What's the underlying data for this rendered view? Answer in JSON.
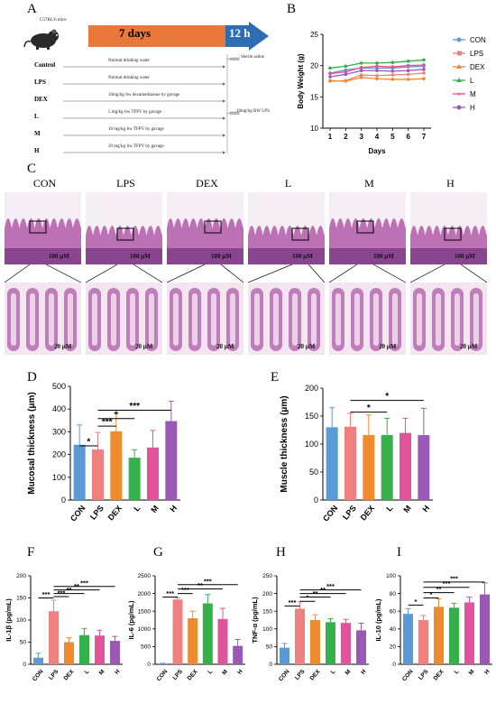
{
  "panels": {
    "A": {
      "letter": "A",
      "mouse_label": "C57BL/6 mice",
      "timeline_days": "7 days",
      "timeline_hours": "12 h",
      "saline_note": "Sterile saline",
      "lps_note": "10mg/kg BW LPS",
      "groups": [
        {
          "name": "Control",
          "treatment": "Normal drinking water"
        },
        {
          "name": "LPS",
          "treatment": "Normal drinking water"
        },
        {
          "name": "DEX",
          "treatment": "10mg/kg·bw dexamethasone by gavage"
        },
        {
          "name": "L",
          "treatment": "5 mg/kg·bw TFPV by gavage"
        },
        {
          "name": "M",
          "treatment": "10 mg/kg·bw TFPV by gavage"
        },
        {
          "name": "H",
          "treatment": "20 mg/kg·bw TFPV by gavage"
        }
      ]
    },
    "B": {
      "letter": "B"
    },
    "C": {
      "letter": "C",
      "groups": [
        "CON",
        "LPS",
        "DEX",
        "L",
        "M",
        "H"
      ],
      "scale_top": "100 μM",
      "scale_bottom": "20 μM"
    },
    "D": {
      "letter": "D"
    },
    "E": {
      "letter": "E"
    },
    "F": {
      "letter": "F"
    },
    "G": {
      "letter": "G"
    },
    "H": {
      "letter": "H"
    },
    "I": {
      "letter": "I"
    }
  },
  "colors": {
    "CON": "#5b9bd5",
    "LPS": "#f08080",
    "DEX": "#ed8b2e",
    "L": "#35b04a",
    "M": "#e0549b",
    "H": "#9b59b6",
    "timeline_orange": "#e8793a",
    "timeline_blue": "#2f6db3",
    "tissue": "#b05aa8"
  },
  "chart_data": [
    {
      "panel": "B",
      "type": "line",
      "ylabel": "Body Weight (g)",
      "xlabel": "Days",
      "x": [
        1,
        2,
        3,
        4,
        5,
        6,
        7
      ],
      "ylim": [
        10,
        25
      ],
      "yticks": [
        10,
        15,
        20,
        25
      ],
      "grid": false,
      "legend": "right",
      "series": [
        {
          "name": "CON",
          "values": [
            18.8,
            19.3,
            19.6,
            19.6,
            19.6,
            19.8,
            19.9
          ]
        },
        {
          "name": "LPS",
          "values": [
            17.5,
            17.6,
            18.5,
            18.4,
            18.5,
            18.6,
            18.8
          ]
        },
        {
          "name": "DEX",
          "values": [
            17.6,
            17.5,
            18.1,
            17.9,
            17.8,
            17.8,
            17.9
          ]
        },
        {
          "name": "L",
          "values": [
            19.6,
            19.9,
            20.4,
            20.4,
            20.5,
            20.7,
            20.9
          ]
        },
        {
          "name": "M",
          "values": [
            18.7,
            19.0,
            19.7,
            19.9,
            19.8,
            20.0,
            20.1
          ]
        },
        {
          "name": "H",
          "values": [
            18.2,
            18.6,
            19.2,
            19.2,
            19.1,
            19.2,
            19.4
          ]
        }
      ]
    },
    {
      "panel": "D",
      "type": "bar",
      "ylabel": "Mucosal thickness (μm)",
      "categories": [
        "CON",
        "LPS",
        "DEX",
        "L",
        "M",
        "H"
      ],
      "values": [
        243,
        222,
        302,
        186,
        231,
        347
      ],
      "errors": [
        87,
        75,
        80,
        35,
        75,
        87
      ],
      "ylim": [
        0,
        500
      ],
      "yticks": [
        0,
        100,
        200,
        300,
        400,
        500
      ],
      "significance": [
        {
          "from": "CON",
          "to": "LPS",
          "label": "*"
        },
        {
          "from": "LPS",
          "to": "DEX",
          "label": "***"
        },
        {
          "from": "LPS",
          "to": "L",
          "label": "*"
        },
        {
          "from": "LPS",
          "to": "H",
          "label": "***"
        }
      ]
    },
    {
      "panel": "E",
      "type": "bar",
      "ylabel": "Muscle thickness (μm)",
      "categories": [
        "CON",
        "LPS",
        "DEX",
        "L",
        "M",
        "H"
      ],
      "values": [
        130,
        131,
        116,
        116,
        120,
        116
      ],
      "errors": [
        35,
        24,
        36,
        30,
        26,
        48
      ],
      "ylim": [
        0,
        200
      ],
      "yticks": [
        0,
        50,
        100,
        150,
        200
      ],
      "significance": [
        {
          "from": "LPS",
          "to": "L",
          "label": "*"
        },
        {
          "from": "LPS",
          "to": "H",
          "label": "*"
        }
      ]
    },
    {
      "panel": "F",
      "type": "bar",
      "ylabel": "IL-1β (pg/mL)",
      "categories": [
        "CON",
        "LPS",
        "DEX",
        "L",
        "M",
        "H"
      ],
      "values": [
        15,
        120,
        50,
        66,
        65,
        53
      ],
      "errors": [
        10,
        25,
        10,
        15,
        12,
        10
      ],
      "ylim": [
        0,
        200
      ],
      "yticks": [
        0,
        50,
        100,
        150,
        200
      ],
      "significance": [
        {
          "from": "CON",
          "to": "LPS",
          "label": "***"
        },
        {
          "from": "LPS",
          "to": "DEX",
          "label": "***"
        },
        {
          "from": "LPS",
          "to": "L",
          "label": "**"
        },
        {
          "from": "LPS",
          "to": "M",
          "label": "**"
        },
        {
          "from": "LPS",
          "to": "H",
          "label": "***"
        }
      ]
    },
    {
      "panel": "G",
      "type": "bar",
      "ylabel": "IL-6 (pg/mL)",
      "categories": [
        "CON",
        "LPS",
        "DEX",
        "L",
        "M",
        "H"
      ],
      "values": [
        20,
        1830,
        1300,
        1720,
        1280,
        520
      ],
      "errors": [
        10,
        50,
        200,
        250,
        300,
        180
      ],
      "ylim": [
        0,
        2500
      ],
      "yticks": [
        0,
        500,
        1000,
        1500,
        2000,
        2500
      ],
      "significance": [
        {
          "from": "CON",
          "to": "LPS",
          "label": "***"
        },
        {
          "from": "LPS",
          "to": "DEX",
          "label": "***"
        },
        {
          "from": "LPS",
          "to": "M",
          "label": "**"
        },
        {
          "from": "LPS",
          "to": "H",
          "label": "***"
        }
      ]
    },
    {
      "panel": "H",
      "type": "bar",
      "ylabel": "TNF-α (pg/mL)",
      "categories": [
        "CON",
        "LPS",
        "DEX",
        "L",
        "M",
        "H"
      ],
      "values": [
        47,
        157,
        125,
        119,
        117,
        96
      ],
      "errors": [
        12,
        20,
        15,
        10,
        10,
        20
      ],
      "ylim": [
        0,
        250
      ],
      "yticks": [
        0,
        50,
        100,
        150,
        200,
        250
      ],
      "significance": [
        {
          "from": "CON",
          "to": "LPS",
          "label": "***"
        },
        {
          "from": "LPS",
          "to": "DEX",
          "label": "*"
        },
        {
          "from": "LPS",
          "to": "L",
          "label": "**"
        },
        {
          "from": "LPS",
          "to": "M",
          "label": "**"
        },
        {
          "from": "LPS",
          "to": "H",
          "label": "***"
        }
      ]
    },
    {
      "panel": "I",
      "type": "bar",
      "ylabel": "IL-10 (pg/mL)",
      "categories": [
        "CON",
        "LPS",
        "DEX",
        "L",
        "M",
        "H"
      ],
      "values": [
        57,
        50,
        65,
        64,
        70,
        79
      ],
      "errors": [
        6,
        5,
        9,
        5,
        6,
        13
      ],
      "ylim": [
        0,
        100
      ],
      "yticks": [
        0,
        20,
        40,
        60,
        80,
        100
      ],
      "significance": [
        {
          "from": "CON",
          "to": "LPS",
          "label": "*"
        },
        {
          "from": "LPS",
          "to": "DEX",
          "label": "*"
        },
        {
          "from": "LPS",
          "to": "L",
          "label": "**"
        },
        {
          "from": "LPS",
          "to": "M",
          "label": "***"
        },
        {
          "from": "LPS",
          "to": "H",
          "label": "***"
        }
      ]
    }
  ]
}
